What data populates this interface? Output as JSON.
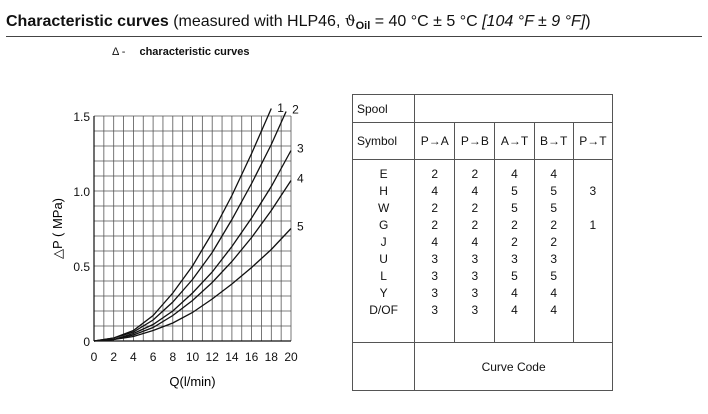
{
  "heading": {
    "bold_text": "Characteristic curves",
    "text_a": " (measured with HLP46, ",
    "theta": "ϑ",
    "oil_sub": "Oil",
    "text_b": " = 40 °C ± 5 °C ",
    "italic_text": "[104 °F ± 9 °F]",
    "text_c": ")"
  },
  "subheading": {
    "delta": "Δ -",
    "label": "characteristic curves"
  },
  "chart_data": {
    "type": "line",
    "xlabel": "Q(l/min)",
    "ylabel": "△P ( MPa)",
    "xlim": [
      0,
      20
    ],
    "ylim": [
      0,
      1.5
    ],
    "x_ticks": [
      "0",
      "2",
      "4",
      "6",
      "8",
      "10",
      "12",
      "14",
      "16",
      "18",
      "20"
    ],
    "y_ticks": [
      "0",
      "0.5",
      "1.0",
      "1.5"
    ],
    "grid": true,
    "series": [
      {
        "name": "1",
        "x": [
          0,
          2,
          4,
          6,
          8,
          10,
          12,
          14,
          16,
          18
        ],
        "y": [
          0,
          0.02,
          0.07,
          0.17,
          0.32,
          0.5,
          0.72,
          0.97,
          1.25,
          1.55
        ]
      },
      {
        "name": "2",
        "x": [
          0,
          2,
          4,
          6,
          8,
          10,
          12,
          14,
          16,
          18,
          19.5
        ],
        "y": [
          0,
          0.02,
          0.06,
          0.14,
          0.26,
          0.41,
          0.59,
          0.81,
          1.05,
          1.31,
          1.53
        ]
      },
      {
        "name": "3",
        "x": [
          0,
          2,
          4,
          6,
          8,
          10,
          12,
          14,
          16,
          18,
          20
        ],
        "y": [
          0,
          0.01,
          0.05,
          0.11,
          0.2,
          0.32,
          0.46,
          0.63,
          0.82,
          1.03,
          1.27
        ]
      },
      {
        "name": "4",
        "x": [
          0,
          2,
          4,
          6,
          8,
          10,
          12,
          14,
          16,
          18,
          20
        ],
        "y": [
          0,
          0.01,
          0.04,
          0.09,
          0.17,
          0.27,
          0.39,
          0.53,
          0.69,
          0.87,
          1.07
        ]
      },
      {
        "name": "5",
        "x": [
          0,
          2,
          4,
          6,
          8,
          10,
          12,
          14,
          16,
          18,
          20
        ],
        "y": [
          0,
          0.01,
          0.03,
          0.07,
          0.12,
          0.19,
          0.28,
          0.38,
          0.49,
          0.61,
          0.75
        ]
      }
    ]
  },
  "table": {
    "spool_label": "Spool",
    "symbol_label": "Symbol",
    "columns": [
      "P→A",
      "P→B",
      "A→T",
      "B→T",
      "P→T"
    ],
    "symbols": [
      "E",
      "H",
      "W",
      "G",
      "J",
      "U",
      "L",
      "Y",
      "D/OF"
    ],
    "values": [
      [
        "2",
        "2",
        "4",
        "4",
        ""
      ],
      [
        "4",
        "4",
        "5",
        "5",
        "3"
      ],
      [
        "2",
        "2",
        "5",
        "5",
        ""
      ],
      [
        "2",
        "2",
        "2",
        "2",
        "1"
      ],
      [
        "4",
        "4",
        "2",
        "2",
        ""
      ],
      [
        "3",
        "3",
        "3",
        "3",
        ""
      ],
      [
        "3",
        "3",
        "5",
        "5",
        ""
      ],
      [
        "3",
        "3",
        "4",
        "4",
        ""
      ],
      [
        "3",
        "3",
        "4",
        "4",
        ""
      ]
    ],
    "footer": "Curve Code"
  },
  "colors": {
    "grid": "#555555",
    "curve": "#111111",
    "text": "#111111"
  }
}
